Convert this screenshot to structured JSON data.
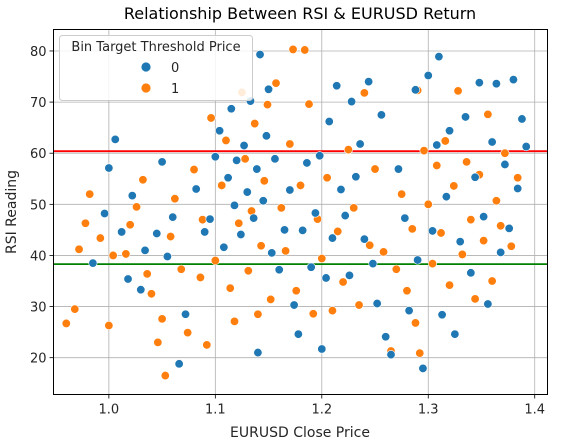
{
  "chart_data": {
    "type": "scatter",
    "title": "Relationship Between RSI & EURUSD Return",
    "xlabel": "EURUSD Close Price",
    "ylabel": "RSI Reading",
    "xlim": [
      0.948,
      1.412
    ],
    "ylim": [
      12.8,
      84.2
    ],
    "xticks": [
      "1.0",
      "1.1",
      "1.2",
      "1.3",
      "1.4"
    ],
    "yticks": [
      "20",
      "30",
      "40",
      "50",
      "60",
      "70",
      "80"
    ],
    "grid": true,
    "legend": {
      "title": "Bin Target Threshold Price",
      "placement": "top-left",
      "entries": [
        "0",
        "1"
      ]
    },
    "hlines": [
      {
        "y": 60.4,
        "color": "#ff0000"
      },
      {
        "y": 38.3,
        "color": "#008000"
      }
    ],
    "colors": {
      "0": "#1f77b4",
      "1": "#ff7f0e"
    },
    "series": [
      {
        "name": "0",
        "color": "#1f77b4",
        "points": [
          [
            0.985,
            38.5
          ],
          [
            0.996,
            48.2
          ],
          [
            1.0,
            57.1
          ],
          [
            1.006,
            62.7
          ],
          [
            1.012,
            44.6
          ],
          [
            1.018,
            35.4
          ],
          [
            1.022,
            51.7
          ],
          [
            1.03,
            33.3
          ],
          [
            1.034,
            41.0
          ],
          [
            1.045,
            44.3
          ],
          [
            1.05,
            58.3
          ],
          [
            1.055,
            39.8
          ],
          [
            1.06,
            47.5
          ],
          [
            1.066,
            18.8
          ],
          [
            1.072,
            28.5
          ],
          [
            1.082,
            53.0
          ],
          [
            1.09,
            44.6
          ],
          [
            1.095,
            47.1
          ],
          [
            1.1,
            59.3
          ],
          [
            1.104,
            64.4
          ],
          [
            1.108,
            41.6
          ],
          [
            1.112,
            55.2
          ],
          [
            1.115,
            68.7
          ],
          [
            1.118,
            49.8
          ],
          [
            1.12,
            58.6
          ],
          [
            1.124,
            44.1
          ],
          [
            1.127,
            61.5
          ],
          [
            1.13,
            52.4
          ],
          [
            1.133,
            70.2
          ],
          [
            1.136,
            47.3
          ],
          [
            1.139,
            56.9
          ],
          [
            1.142,
            79.3
          ],
          [
            1.145,
            50.7
          ],
          [
            1.148,
            63.4
          ],
          [
            1.15,
            72.5
          ],
          [
            1.153,
            40.5
          ],
          [
            1.156,
            58.9
          ],
          [
            1.14,
            21.0
          ],
          [
            1.16,
            37.2
          ],
          [
            1.165,
            45.0
          ],
          [
            1.17,
            52.8
          ],
          [
            1.174,
            30.3
          ],
          [
            1.178,
            24.6
          ],
          [
            1.182,
            44.9
          ],
          [
            1.186,
            58.1
          ],
          [
            1.19,
            37.7
          ],
          [
            1.194,
            48.3
          ],
          [
            1.198,
            59.5
          ],
          [
            1.2,
            21.7
          ],
          [
            1.204,
            35.6
          ],
          [
            1.207,
            66.2
          ],
          [
            1.21,
            43.4
          ],
          [
            1.214,
            73.2
          ],
          [
            1.218,
            52.9
          ],
          [
            1.222,
            47.8
          ],
          [
            1.226,
            36.1
          ],
          [
            1.228,
            70.1
          ],
          [
            1.232,
            55.4
          ],
          [
            1.236,
            61.8
          ],
          [
            1.24,
            43.2
          ],
          [
            1.244,
            74.0
          ],
          [
            1.248,
            38.4
          ],
          [
            1.252,
            30.6
          ],
          [
            1.256,
            67.5
          ],
          [
            1.26,
            24.1
          ],
          [
            1.265,
            20.6
          ],
          [
            1.272,
            56.9
          ],
          [
            1.278,
            47.3
          ],
          [
            1.282,
            29.2
          ],
          [
            1.288,
            72.4
          ],
          [
            1.29,
            39.1
          ],
          [
            1.295,
            17.9
          ],
          [
            1.3,
            75.2
          ],
          [
            1.304,
            44.8
          ],
          [
            1.308,
            61.6
          ],
          [
            1.31,
            78.9
          ],
          [
            1.313,
            28.4
          ],
          [
            1.317,
            51.5
          ],
          [
            1.32,
            64.4
          ],
          [
            1.325,
            24.6
          ],
          [
            1.33,
            42.7
          ],
          [
            1.335,
            67.1
          ],
          [
            1.34,
            36.6
          ],
          [
            1.344,
            55.3
          ],
          [
            1.348,
            73.8
          ],
          [
            1.352,
            47.6
          ],
          [
            1.356,
            30.5
          ],
          [
            1.36,
            62.2
          ],
          [
            1.364,
            73.6
          ],
          [
            1.368,
            40.6
          ],
          [
            1.372,
            57.8
          ],
          [
            1.376,
            45.3
          ],
          [
            1.38,
            74.4
          ],
          [
            1.384,
            53.1
          ],
          [
            1.388,
            66.7
          ],
          [
            1.392,
            61.3
          ]
        ]
      },
      {
        "name": "1",
        "color": "#ff7f0e",
        "points": [
          [
            0.96,
            26.7
          ],
          [
            0.968,
            29.5
          ],
          [
            0.972,
            41.2
          ],
          [
            0.978,
            46.3
          ],
          [
            0.982,
            52.0
          ],
          [
            0.992,
            43.4
          ],
          [
            1.0,
            26.3
          ],
          [
            1.004,
            40.0
          ],
          [
            1.016,
            40.3
          ],
          [
            1.02,
            46.0
          ],
          [
            1.026,
            49.5
          ],
          [
            1.032,
            54.8
          ],
          [
            1.036,
            36.4
          ],
          [
            1.04,
            32.5
          ],
          [
            1.046,
            23.0
          ],
          [
            1.05,
            27.6
          ],
          [
            1.053,
            16.5
          ],
          [
            1.058,
            43.7
          ],
          [
            1.062,
            51.1
          ],
          [
            1.068,
            37.3
          ],
          [
            1.074,
            24.9
          ],
          [
            1.08,
            56.8
          ],
          [
            1.086,
            35.7
          ],
          [
            1.088,
            47.0
          ],
          [
            1.092,
            22.5
          ],
          [
            1.096,
            66.9
          ],
          [
            1.1,
            39.0
          ],
          [
            1.106,
            53.7
          ],
          [
            1.11,
            62.5
          ],
          [
            1.114,
            33.6
          ],
          [
            1.118,
            27.1
          ],
          [
            1.122,
            46.3
          ],
          [
            1.125,
            71.9
          ],
          [
            1.128,
            58.9
          ],
          [
            1.131,
            37.0
          ],
          [
            1.134,
            48.7
          ],
          [
            1.137,
            65.8
          ],
          [
            1.14,
            28.5
          ],
          [
            1.143,
            41.9
          ],
          [
            1.146,
            54.6
          ],
          [
            1.149,
            69.5
          ],
          [
            1.152,
            31.4
          ],
          [
            1.157,
            73.7
          ],
          [
            1.162,
            49.3
          ],
          [
            1.166,
            40.9
          ],
          [
            1.17,
            61.8
          ],
          [
            1.173,
            80.3
          ],
          [
            1.176,
            33.1
          ],
          [
            1.18,
            53.7
          ],
          [
            1.184,
            80.2
          ],
          [
            1.188,
            69.6
          ],
          [
            1.192,
            28.6
          ],
          [
            1.196,
            47.1
          ],
          [
            1.2,
            39.4
          ],
          [
            1.205,
            55.2
          ],
          [
            1.21,
            29.2
          ],
          [
            1.215,
            44.7
          ],
          [
            1.22,
            34.8
          ],
          [
            1.225,
            60.7
          ],
          [
            1.23,
            49.3
          ],
          [
            1.235,
            30.3
          ],
          [
            1.24,
            71.8
          ],
          [
            1.245,
            42.0
          ],
          [
            1.25,
            56.9
          ],
          [
            1.258,
            40.7
          ],
          [
            1.265,
            21.3
          ],
          [
            1.27,
            37.3
          ],
          [
            1.275,
            52.0
          ],
          [
            1.28,
            33.1
          ],
          [
            1.285,
            45.2
          ],
          [
            1.288,
            26.8
          ],
          [
            1.29,
            72.3
          ],
          [
            1.292,
            20.9
          ],
          [
            1.296,
            60.5
          ],
          [
            1.3,
            50.0
          ],
          [
            1.304,
            38.4
          ],
          [
            1.308,
            57.6
          ],
          [
            1.312,
            44.4
          ],
          [
            1.316,
            62.4
          ],
          [
            1.32,
            34.2
          ],
          [
            1.324,
            53.6
          ],
          [
            1.328,
            72.2
          ],
          [
            1.332,
            40.2
          ],
          [
            1.336,
            58.3
          ],
          [
            1.34,
            47.0
          ],
          [
            1.344,
            31.5
          ],
          [
            1.348,
            55.8
          ],
          [
            1.352,
            42.9
          ],
          [
            1.356,
            67.6
          ],
          [
            1.36,
            35.0
          ],
          [
            1.364,
            50.7
          ],
          [
            1.368,
            45.8
          ],
          [
            1.372,
            60.0
          ],
          [
            1.378,
            41.8
          ],
          [
            1.384,
            55.2
          ]
        ]
      }
    ]
  }
}
